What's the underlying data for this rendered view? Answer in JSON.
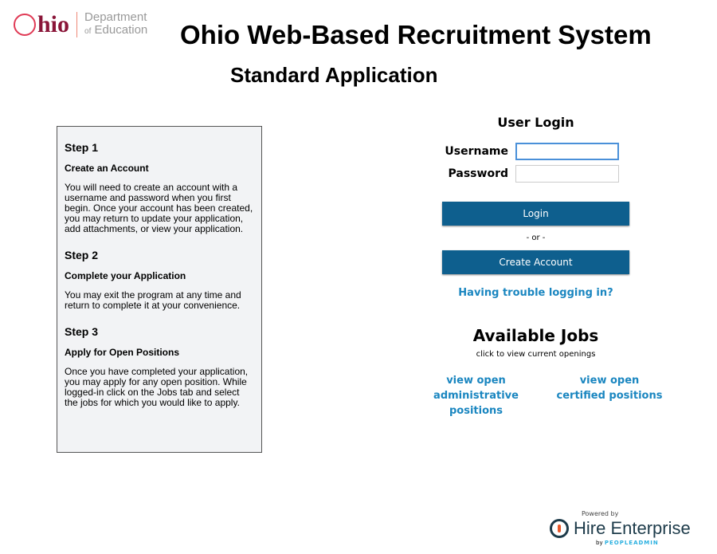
{
  "logo": {
    "brand": "Ohio",
    "dept_line1": "Department",
    "dept_line2_prefix": "of",
    "dept_line2": "Education"
  },
  "header": {
    "title": "Ohio Web-Based Recruitment System",
    "subtitle": "Standard Application"
  },
  "steps": [
    {
      "title": "Step 1",
      "heading": "Create an Account",
      "text": "You will need to create an account with a username and password when you first begin. Once your account has been created, you may return to update your application, add attachments, or view your application."
    },
    {
      "title": "Step 2",
      "heading": "Complete your Application",
      "text": "You may exit the program at any time and return to complete it at your convenience."
    },
    {
      "title": "Step 3",
      "heading": "Apply for Open Positions",
      "text": "Once you have completed your application, you may apply for any open position. While logged-in click on the Jobs tab and select the jobs for which you would like to apply."
    }
  ],
  "login": {
    "title": "User Login",
    "username_label": "Username",
    "username_value": "",
    "password_label": "Password",
    "password_value": "",
    "login_button": "Login",
    "or": "- or -",
    "create_button": "Create Account",
    "trouble_link": "Having trouble logging in?"
  },
  "jobs": {
    "title": "Available Jobs",
    "subtitle": "click to view current openings",
    "admin_link": "view open administrative positions",
    "cert_link": "view open certified positions"
  },
  "footer": {
    "powered_by": "Powered by",
    "product": "Hire Enterprise",
    "by": "by",
    "company": "PEOPLEADMIN"
  },
  "colors": {
    "brand": "#8a1538",
    "button": "#0e5f8e",
    "link": "#1a86c0"
  }
}
